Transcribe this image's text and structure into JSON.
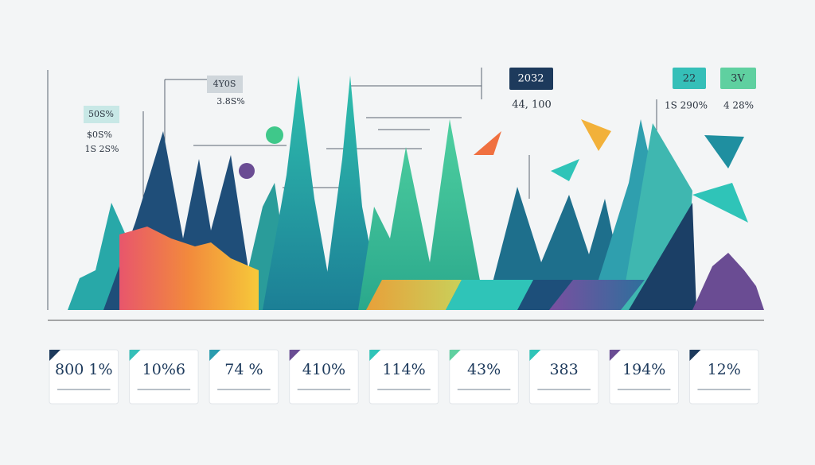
{
  "callouts": [
    "4Y0S",
    "3.8S%",
    "50S%",
    "$0S%",
    "1S 2S%",
    "2032",
    "44, 100",
    "22",
    "3V",
    "1S 290%",
    "4 28%"
  ],
  "cards": [
    "800 1%",
    "10%6",
    "74 %",
    "410%",
    "114%",
    "43%",
    "383",
    "194%",
    "12%"
  ]
}
